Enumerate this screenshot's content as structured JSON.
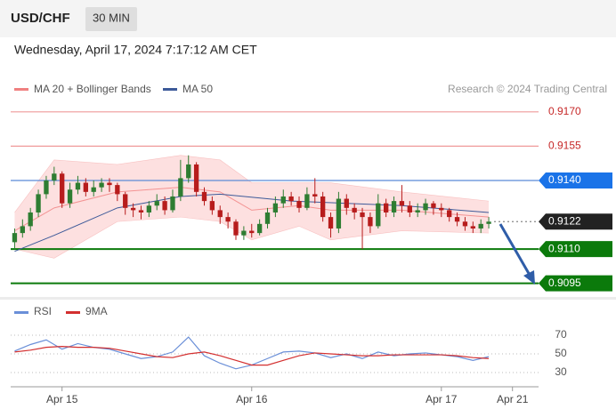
{
  "header": {
    "symbol": "USD/CHF",
    "interval": "30 MIN",
    "datetime": "Wednesday, April 17, 2024 7:17:12 AM CET"
  },
  "chart_data": [
    {
      "type": "candlestick",
      "source": "Research © 2024 Trading Central",
      "up_color": "#2e7d32",
      "down_color": "#b71c1c",
      "xlim": [
        -6.5,
        60.3
      ],
      "ylim": [
        0.90906,
        0.91781
      ],
      "x": [
        -6,
        -5,
        -4,
        -3,
        -2,
        -1,
        0,
        1,
        2,
        3,
        4,
        5,
        6,
        7,
        8,
        9,
        10,
        11,
        12,
        13,
        14,
        15,
        16,
        17,
        18,
        19,
        20,
        21,
        22,
        23,
        24,
        25,
        26,
        27,
        28,
        29,
        30,
        31,
        32,
        33,
        34,
        35,
        36,
        37,
        38,
        39,
        40,
        41,
        42,
        43,
        44,
        45,
        46,
        47,
        48,
        49,
        50,
        51,
        52,
        53,
        54
      ],
      "open": [
        0.9113,
        0.9117,
        0.912,
        0.9126,
        0.9134,
        0.914,
        0.9143,
        0.913,
        0.9136,
        0.9139,
        0.9135,
        0.9137,
        0.9139,
        0.9138,
        0.9134,
        0.9128,
        0.9127,
        0.9126,
        0.9129,
        0.9131,
        0.9127,
        0.9133,
        0.9141,
        0.9147,
        0.9135,
        0.9131,
        0.9127,
        0.9124,
        0.9122,
        0.9116,
        0.9118,
        0.9117,
        0.9121,
        0.9126,
        0.913,
        0.9133,
        0.9131,
        0.9128,
        0.9134,
        0.9133,
        0.9124,
        0.9119,
        0.9132,
        0.9128,
        0.9126,
        0.9124,
        0.912,
        0.913,
        0.9126,
        0.9131,
        0.9129,
        0.9126,
        0.9127,
        0.913,
        0.9128,
        0.9127,
        0.9124,
        0.9122,
        0.912,
        0.9119,
        0.9121
      ],
      "high": [
        0.9119,
        0.9123,
        0.9128,
        0.9136,
        0.9142,
        0.9146,
        0.9144,
        0.9139,
        0.9142,
        0.9141,
        0.914,
        0.9141,
        0.9141,
        0.9139,
        0.9135,
        0.913,
        0.9129,
        0.9131,
        0.9134,
        0.9133,
        0.9136,
        0.9149,
        0.9151,
        0.9148,
        0.9137,
        0.9133,
        0.9129,
        0.9126,
        0.9123,
        0.912,
        0.9121,
        0.9123,
        0.9128,
        0.9133,
        0.9136,
        0.9135,
        0.9133,
        0.9137,
        0.9141,
        0.9135,
        0.9126,
        0.9135,
        0.9134,
        0.913,
        0.9128,
        0.9126,
        0.9134,
        0.9132,
        0.9133,
        0.9138,
        0.9131,
        0.913,
        0.9132,
        0.9131,
        0.913,
        0.9128,
        0.9126,
        0.9124,
        0.9122,
        0.9123,
        0.9124
      ],
      "low": [
        0.911,
        0.9115,
        0.9118,
        0.9124,
        0.9132,
        0.9138,
        0.9128,
        0.9128,
        0.9134,
        0.9133,
        0.9133,
        0.9135,
        0.9135,
        0.9131,
        0.9125,
        0.9124,
        0.9123,
        0.9124,
        0.9127,
        0.9125,
        0.9126,
        0.9131,
        0.9139,
        0.9133,
        0.9129,
        0.9125,
        0.9121,
        0.9119,
        0.9114,
        0.9114,
        0.9115,
        0.9116,
        0.9119,
        0.9124,
        0.9128,
        0.9129,
        0.9126,
        0.9127,
        0.913,
        0.9122,
        0.9115,
        0.9117,
        0.9125,
        0.9123,
        0.911,
        0.9117,
        0.9119,
        0.9124,
        0.9124,
        0.9126,
        0.9124,
        0.9124,
        0.9125,
        0.9125,
        0.9124,
        0.9122,
        0.912,
        0.9118,
        0.9117,
        0.9117,
        0.9119
      ],
      "close": [
        0.9117,
        0.912,
        0.9126,
        0.9134,
        0.914,
        0.9143,
        0.913,
        0.9136,
        0.9139,
        0.9135,
        0.9137,
        0.9139,
        0.9138,
        0.9134,
        0.9128,
        0.9127,
        0.9126,
        0.9129,
        0.9131,
        0.9127,
        0.9133,
        0.9141,
        0.9147,
        0.9135,
        0.9131,
        0.9127,
        0.9124,
        0.9122,
        0.9116,
        0.9118,
        0.9117,
        0.9121,
        0.9126,
        0.913,
        0.9133,
        0.9131,
        0.9128,
        0.9134,
        0.9133,
        0.9124,
        0.9119,
        0.9132,
        0.9128,
        0.9126,
        0.9124,
        0.912,
        0.913,
        0.9126,
        0.9131,
        0.9129,
        0.9126,
        0.9127,
        0.913,
        0.9128,
        0.9127,
        0.9124,
        0.9122,
        0.912,
        0.9119,
        0.9121,
        0.9122
      ],
      "bands": {
        "name": "MA 20 + Bollinger Bands",
        "color": "#f08080",
        "fill": "#fde0e0",
        "x": [
          -6,
          -1,
          7,
          15,
          20,
          24,
          30,
          34,
          43,
          54
        ],
        "upper": [
          0.9126,
          0.9149,
          0.9147,
          0.9151,
          0.9149,
          0.9139,
          0.9139,
          0.9139,
          0.9135,
          0.9131
        ],
        "middle": [
          0.9118,
          0.9128,
          0.9135,
          0.9137,
          0.9135,
          0.9127,
          0.9129,
          0.9127,
          0.9127,
          0.9124
        ],
        "lower": [
          0.911,
          0.9106,
          0.9122,
          0.9124,
          0.9122,
          0.9114,
          0.912,
          0.9114,
          0.9118,
          0.9117
        ]
      },
      "ma": {
        "name": "MA 50",
        "color": "#3d5a99",
        "x": [
          -6,
          -1,
          7,
          15,
          20,
          29,
          43,
          54
        ],
        "values": [
          0.9109,
          0.9116,
          0.9128,
          0.9133,
          0.9134,
          0.9131,
          0.9129,
          0.9126
        ]
      },
      "levels": [
        {
          "value": 0.917,
          "label": "0.9170",
          "color": "#c62828",
          "line_color": "#ef9a9a",
          "box": false,
          "line_style": "solid"
        },
        {
          "value": 0.9155,
          "label": "0.9155",
          "color": "#c62828",
          "line_color": "#ef9a9a",
          "box": false,
          "line_style": "solid"
        },
        {
          "value": 0.914,
          "label": "0.9140",
          "color": "#1a73e8",
          "line_color": "#5b8bd6",
          "box": true,
          "line_style": "solid"
        },
        {
          "value": 0.9122,
          "label": "0.9122",
          "color": "#222222",
          "line_color": "#888888",
          "box": true,
          "line_style": "dotted"
        },
        {
          "value": 0.911,
          "label": "0.9110",
          "color": "#0b7a0b",
          "line_color": "#0b7a0b",
          "box": true,
          "line_style": "thick"
        },
        {
          "value": 0.9095,
          "label": "0.9095",
          "color": "#0b7a0b",
          "line_color": "#0b7a0b",
          "box": true,
          "line_style": "thick"
        }
      ]
    },
    {
      "type": "line",
      "xlim": [
        -6.5,
        60.3
      ],
      "ylim": [
        17.6,
        86.2
      ],
      "yticks": [
        30,
        50,
        70
      ],
      "xticks": [
        {
          "value": 0,
          "label": "Apr 15"
        },
        {
          "value": 24,
          "label": "Apr 16"
        },
        {
          "value": 48,
          "label": "Apr 17"
        },
        {
          "value": 57,
          "label": "Apr 21"
        }
      ],
      "x": [
        -6,
        -4,
        -2,
        0,
        2,
        4,
        6,
        8,
        10,
        12,
        14,
        16,
        18,
        20,
        22,
        24,
        26,
        28,
        30,
        32,
        34,
        36,
        38,
        40,
        42,
        44,
        46,
        48,
        50,
        52,
        54
      ],
      "series": [
        {
          "name": "RSI",
          "color": "#6a8fd8",
          "values": [
            53,
            60,
            65,
            55,
            61,
            57,
            55,
            50,
            45,
            47,
            52,
            68,
            48,
            40,
            34,
            38,
            45,
            52,
            53,
            51,
            46,
            50,
            45,
            52,
            48,
            50,
            51,
            49,
            47,
            43,
            47
          ]
        },
        {
          "name": "9MA",
          "color": "#d32f2f",
          "values": [
            52,
            54,
            57,
            58,
            57,
            57,
            56,
            53,
            50,
            47,
            46,
            50,
            52,
            48,
            43,
            38,
            38,
            43,
            48,
            51,
            50,
            49,
            48,
            48,
            49,
            49,
            49,
            49,
            48,
            46,
            45
          ]
        }
      ]
    }
  ]
}
